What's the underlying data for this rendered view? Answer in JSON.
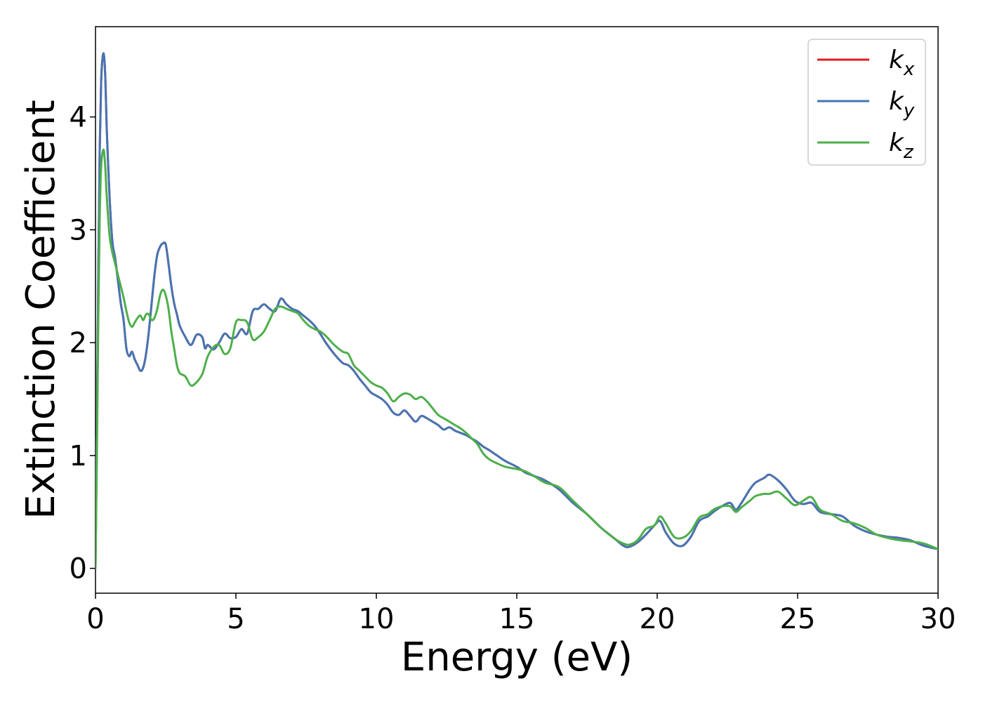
{
  "chart_data": {
    "type": "line",
    "title": "",
    "xlabel": "Energy (eV)",
    "ylabel": "Extinction Coefficient",
    "xlim": [
      0,
      30
    ],
    "ylim": [
      -0.22,
      4.8
    ],
    "xticks": [
      0,
      5,
      10,
      15,
      20,
      25,
      30
    ],
    "yticks": [
      0,
      1,
      2,
      3,
      4
    ],
    "grid": false,
    "legend_position": "top-right",
    "series": [
      {
        "name": "k_x",
        "legend_base": "k",
        "legend_sub": "x",
        "color": "#e41a1c",
        "x": [
          0,
          0.05,
          0.1,
          0.15,
          0.2,
          0.25,
          0.3,
          0.35,
          0.4,
          0.5,
          0.6,
          0.7,
          0.8,
          0.9,
          1.0,
          1.1,
          1.2,
          1.3,
          1.4,
          1.5,
          1.6,
          1.7,
          1.8,
          1.9,
          2.0,
          2.1,
          2.2,
          2.3,
          2.4,
          2.5,
          2.6,
          2.7,
          2.8,
          2.9,
          3.0,
          3.2,
          3.4,
          3.6,
          3.8,
          3.9,
          4.0,
          4.2,
          4.4,
          4.6,
          4.8,
          5.0,
          5.2,
          5.4,
          5.6,
          5.8,
          6.0,
          6.2,
          6.4,
          6.6,
          6.8,
          7.0,
          7.2,
          7.4,
          7.6,
          7.8,
          8.0,
          8.2,
          8.5,
          8.8,
          9.0,
          9.2,
          9.4,
          9.6,
          9.8,
          10.0,
          10.2,
          10.4,
          10.6,
          10.8,
          11.0,
          11.2,
          11.4,
          11.6,
          11.8,
          12.0,
          12.2,
          12.4,
          12.6,
          12.8,
          13.0,
          13.2,
          13.4,
          13.6,
          13.8,
          14.0,
          14.3,
          14.6,
          15.0,
          15.3,
          15.6,
          16.0,
          16.5,
          17.0,
          17.5,
          18.0,
          18.5,
          18.8,
          19.0,
          19.3,
          19.6,
          19.9,
          20.1,
          20.3,
          20.6,
          20.9,
          21.2,
          21.5,
          21.8,
          22.0,
          22.3,
          22.6,
          22.8,
          23.0,
          23.3,
          23.5,
          23.8,
          24.0,
          24.3,
          24.6,
          24.9,
          25.2,
          25.5,
          25.8,
          26.2,
          26.6,
          27.0,
          27.4,
          27.8,
          28.2,
          28.6,
          29.0,
          29.5,
          30.0
        ],
        "y": [
          0.0,
          1.2,
          2.6,
          3.7,
          4.3,
          4.52,
          4.55,
          4.35,
          3.9,
          3.3,
          2.9,
          2.75,
          2.55,
          2.35,
          2.2,
          1.95,
          1.88,
          1.92,
          1.85,
          1.8,
          1.75,
          1.78,
          1.9,
          2.1,
          2.35,
          2.6,
          2.78,
          2.85,
          2.88,
          2.87,
          2.7,
          2.5,
          2.35,
          2.25,
          2.15,
          2.05,
          1.98,
          2.07,
          2.05,
          1.95,
          1.98,
          1.94,
          2.0,
          2.08,
          2.04,
          2.05,
          2.12,
          2.08,
          2.28,
          2.3,
          2.34,
          2.3,
          2.28,
          2.39,
          2.34,
          2.3,
          2.28,
          2.24,
          2.2,
          2.15,
          2.08,
          2.0,
          1.9,
          1.82,
          1.8,
          1.75,
          1.68,
          1.62,
          1.56,
          1.53,
          1.5,
          1.45,
          1.38,
          1.36,
          1.4,
          1.35,
          1.3,
          1.35,
          1.33,
          1.3,
          1.27,
          1.23,
          1.25,
          1.22,
          1.2,
          1.18,
          1.15,
          1.12,
          1.08,
          1.05,
          1.0,
          0.95,
          0.9,
          0.85,
          0.82,
          0.78,
          0.7,
          0.58,
          0.48,
          0.36,
          0.26,
          0.2,
          0.19,
          0.23,
          0.3,
          0.38,
          0.42,
          0.32,
          0.22,
          0.2,
          0.28,
          0.42,
          0.46,
          0.5,
          0.55,
          0.58,
          0.52,
          0.58,
          0.7,
          0.76,
          0.8,
          0.83,
          0.78,
          0.7,
          0.6,
          0.57,
          0.58,
          0.5,
          0.48,
          0.46,
          0.38,
          0.33,
          0.3,
          0.28,
          0.27,
          0.25,
          0.2,
          0.17
        ]
      },
      {
        "name": "k_y",
        "legend_base": "k",
        "legend_sub": "y",
        "color": "#4575b4",
        "x": [
          0,
          0.05,
          0.1,
          0.15,
          0.2,
          0.25,
          0.3,
          0.35,
          0.4,
          0.5,
          0.6,
          0.7,
          0.8,
          0.9,
          1.0,
          1.1,
          1.2,
          1.3,
          1.4,
          1.5,
          1.6,
          1.7,
          1.8,
          1.9,
          2.0,
          2.1,
          2.2,
          2.3,
          2.4,
          2.5,
          2.6,
          2.7,
          2.8,
          2.9,
          3.0,
          3.2,
          3.4,
          3.6,
          3.8,
          3.9,
          4.0,
          4.2,
          4.4,
          4.6,
          4.8,
          5.0,
          5.2,
          5.4,
          5.6,
          5.8,
          6.0,
          6.2,
          6.4,
          6.6,
          6.8,
          7.0,
          7.2,
          7.4,
          7.6,
          7.8,
          8.0,
          8.2,
          8.5,
          8.8,
          9.0,
          9.2,
          9.4,
          9.6,
          9.8,
          10.0,
          10.2,
          10.4,
          10.6,
          10.8,
          11.0,
          11.2,
          11.4,
          11.6,
          11.8,
          12.0,
          12.2,
          12.4,
          12.6,
          12.8,
          13.0,
          13.2,
          13.4,
          13.6,
          13.8,
          14.0,
          14.3,
          14.6,
          15.0,
          15.3,
          15.6,
          16.0,
          16.5,
          17.0,
          17.5,
          18.0,
          18.5,
          18.8,
          19.0,
          19.3,
          19.6,
          19.9,
          20.1,
          20.3,
          20.6,
          20.9,
          21.2,
          21.5,
          21.8,
          22.0,
          22.3,
          22.6,
          22.8,
          23.0,
          23.3,
          23.5,
          23.8,
          24.0,
          24.3,
          24.6,
          24.9,
          25.2,
          25.5,
          25.8,
          26.2,
          26.6,
          27.0,
          27.4,
          27.8,
          28.2,
          28.6,
          29.0,
          29.5,
          30.0
        ],
        "y": [
          0.0,
          1.2,
          2.6,
          3.7,
          4.3,
          4.52,
          4.55,
          4.35,
          3.9,
          3.3,
          2.9,
          2.75,
          2.55,
          2.35,
          2.2,
          1.95,
          1.88,
          1.92,
          1.85,
          1.8,
          1.75,
          1.78,
          1.9,
          2.1,
          2.35,
          2.6,
          2.78,
          2.85,
          2.88,
          2.87,
          2.7,
          2.5,
          2.35,
          2.25,
          2.15,
          2.05,
          1.98,
          2.07,
          2.05,
          1.95,
          1.98,
          1.94,
          2.0,
          2.08,
          2.04,
          2.05,
          2.12,
          2.08,
          2.28,
          2.3,
          2.34,
          2.3,
          2.28,
          2.39,
          2.34,
          2.3,
          2.28,
          2.24,
          2.2,
          2.15,
          2.08,
          2.0,
          1.9,
          1.82,
          1.8,
          1.75,
          1.68,
          1.62,
          1.56,
          1.53,
          1.5,
          1.45,
          1.38,
          1.36,
          1.4,
          1.35,
          1.3,
          1.35,
          1.33,
          1.3,
          1.27,
          1.23,
          1.25,
          1.22,
          1.2,
          1.18,
          1.15,
          1.12,
          1.08,
          1.05,
          1.0,
          0.95,
          0.9,
          0.85,
          0.82,
          0.78,
          0.7,
          0.58,
          0.48,
          0.36,
          0.26,
          0.2,
          0.19,
          0.23,
          0.3,
          0.38,
          0.42,
          0.32,
          0.22,
          0.2,
          0.28,
          0.42,
          0.46,
          0.5,
          0.55,
          0.58,
          0.52,
          0.58,
          0.7,
          0.76,
          0.8,
          0.83,
          0.78,
          0.7,
          0.6,
          0.57,
          0.58,
          0.5,
          0.48,
          0.46,
          0.38,
          0.33,
          0.3,
          0.28,
          0.27,
          0.25,
          0.2,
          0.17
        ]
      },
      {
        "name": "k_z",
        "legend_base": "k",
        "legend_sub": "z",
        "color": "#4daf4a",
        "x": [
          0,
          0.05,
          0.1,
          0.15,
          0.2,
          0.25,
          0.3,
          0.35,
          0.4,
          0.5,
          0.6,
          0.7,
          0.8,
          0.9,
          1.0,
          1.1,
          1.2,
          1.3,
          1.4,
          1.5,
          1.6,
          1.7,
          1.8,
          1.9,
          2.0,
          2.1,
          2.2,
          2.3,
          2.4,
          2.5,
          2.6,
          2.7,
          2.8,
          2.9,
          3.0,
          3.2,
          3.4,
          3.6,
          3.8,
          3.9,
          4.0,
          4.2,
          4.4,
          4.6,
          4.8,
          5.0,
          5.2,
          5.4,
          5.6,
          5.8,
          6.0,
          6.2,
          6.4,
          6.6,
          6.8,
          7.0,
          7.2,
          7.4,
          7.6,
          7.8,
          8.0,
          8.2,
          8.5,
          8.8,
          9.0,
          9.2,
          9.4,
          9.6,
          9.8,
          10.0,
          10.2,
          10.4,
          10.6,
          10.8,
          11.0,
          11.2,
          11.4,
          11.6,
          11.8,
          12.0,
          12.2,
          12.4,
          12.6,
          12.8,
          13.0,
          13.2,
          13.4,
          13.6,
          13.8,
          14.0,
          14.3,
          14.6,
          15.0,
          15.3,
          15.6,
          16.0,
          16.5,
          17.0,
          17.5,
          18.0,
          18.5,
          18.8,
          19.0,
          19.3,
          19.6,
          19.9,
          20.1,
          20.3,
          20.6,
          20.9,
          21.2,
          21.5,
          21.8,
          22.0,
          22.3,
          22.6,
          22.8,
          23.0,
          23.3,
          23.5,
          23.8,
          24.0,
          24.3,
          24.6,
          24.9,
          25.2,
          25.5,
          25.8,
          26.2,
          26.6,
          27.0,
          27.4,
          27.8,
          28.2,
          28.6,
          29.0,
          29.5,
          30.0
        ],
        "y": [
          0.0,
          1.0,
          2.2,
          3.1,
          3.55,
          3.68,
          3.7,
          3.55,
          3.3,
          2.95,
          2.8,
          2.7,
          2.6,
          2.5,
          2.4,
          2.28,
          2.18,
          2.14,
          2.18,
          2.22,
          2.24,
          2.2,
          2.25,
          2.25,
          2.2,
          2.22,
          2.3,
          2.42,
          2.47,
          2.42,
          2.3,
          2.1,
          1.95,
          1.8,
          1.73,
          1.7,
          1.62,
          1.65,
          1.72,
          1.8,
          1.88,
          1.96,
          1.98,
          1.9,
          1.95,
          2.18,
          2.2,
          2.18,
          2.03,
          2.05,
          2.1,
          2.2,
          2.3,
          2.32,
          2.3,
          2.28,
          2.26,
          2.2,
          2.15,
          2.12,
          2.1,
          2.06,
          1.98,
          1.92,
          1.9,
          1.8,
          1.75,
          1.7,
          1.65,
          1.62,
          1.6,
          1.55,
          1.48,
          1.52,
          1.55,
          1.54,
          1.5,
          1.52,
          1.48,
          1.42,
          1.36,
          1.33,
          1.3,
          1.27,
          1.24,
          1.2,
          1.15,
          1.1,
          1.02,
          0.97,
          0.93,
          0.9,
          0.88,
          0.86,
          0.82,
          0.76,
          0.72,
          0.6,
          0.48,
          0.36,
          0.26,
          0.22,
          0.21,
          0.25,
          0.35,
          0.38,
          0.46,
          0.4,
          0.28,
          0.27,
          0.33,
          0.45,
          0.48,
          0.52,
          0.55,
          0.55,
          0.5,
          0.54,
          0.6,
          0.64,
          0.66,
          0.66,
          0.68,
          0.62,
          0.56,
          0.6,
          0.63,
          0.52,
          0.48,
          0.42,
          0.4,
          0.36,
          0.3,
          0.27,
          0.25,
          0.24,
          0.22,
          0.17
        ]
      }
    ]
  }
}
